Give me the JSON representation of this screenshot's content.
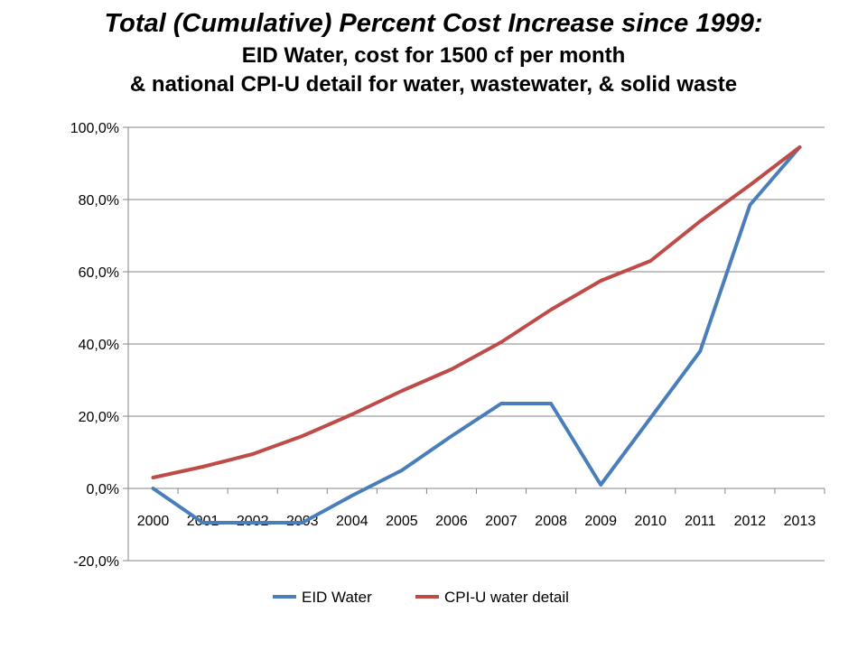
{
  "chart_data": {
    "type": "line",
    "title": "Total (Cumulative) Percent Cost Increase since 1999:",
    "subtitle_lines": [
      "EID Water, cost for 1500 cf per month",
      "& national CPI-U detail for water, wastewater, & solid waste"
    ],
    "xlabel": "",
    "ylabel": "",
    "categories": [
      "2000",
      "2001",
      "2002",
      "2003",
      "2004",
      "2005",
      "2006",
      "2007",
      "2008",
      "2009",
      "2010",
      "2011",
      "2012",
      "2013"
    ],
    "ylim": [
      -20,
      100
    ],
    "yticks": [
      -20,
      0,
      20,
      40,
      60,
      80,
      100
    ],
    "ytick_labels": [
      "-20,0%",
      "0,0%",
      "20,0%",
      "40,0%",
      "60,0%",
      "80,0%",
      "100,0%"
    ],
    "grid": true,
    "legend_position": "bottom",
    "series": [
      {
        "name": "EID Water",
        "color": "#4a7ebb",
        "values": [
          0,
          -9.5,
          -9.5,
          -9.5,
          -2,
          5,
          14.5,
          23.5,
          23.5,
          1,
          19.5,
          38,
          78.5,
          94.5
        ]
      },
      {
        "name": "CPI-U water detail",
        "color": "#be4b48",
        "values": [
          3,
          6,
          9.5,
          14.5,
          20.5,
          27,
          33,
          40.5,
          49.5,
          57.5,
          63,
          74,
          84,
          94.5
        ]
      }
    ]
  }
}
